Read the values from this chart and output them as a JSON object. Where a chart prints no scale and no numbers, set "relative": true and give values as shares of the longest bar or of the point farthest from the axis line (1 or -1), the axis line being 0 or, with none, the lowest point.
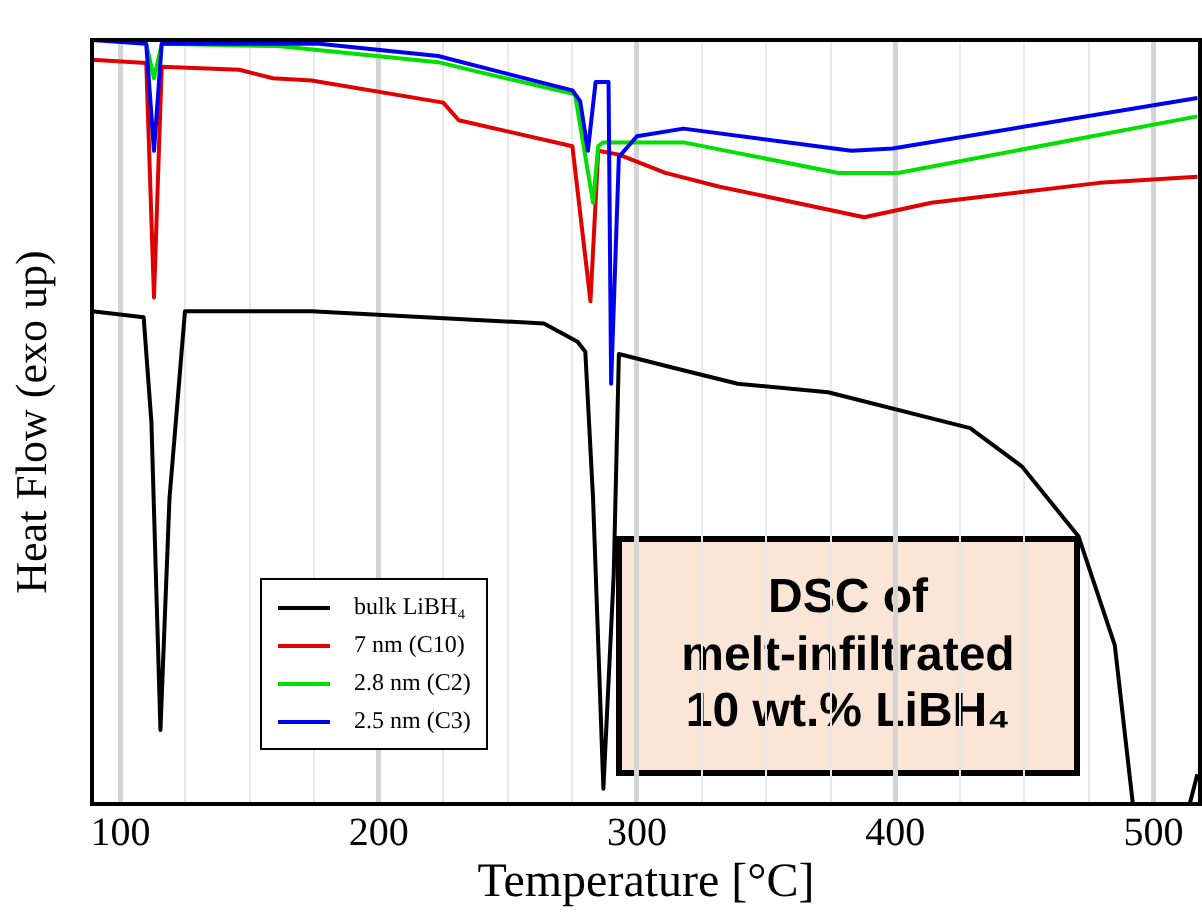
{
  "chart_data": {
    "type": "line",
    "xlabel": "Temperature [°C]",
    "ylabel": "Heat Flow (exo up)",
    "relative": true,
    "xlim": [
      89,
      518
    ],
    "xticks": [
      100,
      {
        "value": 125,
        "label": null
      },
      {
        "value": 150,
        "label": null
      },
      {
        "value": 175,
        "label": null
      },
      200,
      {
        "value": 225,
        "label": null
      },
      {
        "value": 250,
        "label": null
      },
      {
        "value": 275,
        "label": null
      },
      300,
      {
        "value": 325,
        "label": null
      },
      {
        "value": 350,
        "label": null
      },
      {
        "value": 375,
        "label": null
      },
      400,
      {
        "value": 425,
        "label": null
      },
      {
        "value": 450,
        "label": null
      },
      {
        "value": 475,
        "label": null
      },
      500
    ],
    "grid": "x",
    "legend": "bottom left",
    "marker": "none",
    "line_style": "solid",
    "annotations": [
      "DSC of melt-infiltrated 10 wt.% LiBH₄"
    ],
    "series": [
      {
        "name": "bulk LiBH₄",
        "color": "#000000",
        "x": [
          89,
          109,
          112,
          115.5,
          119,
          125,
          174,
          264,
          277,
          280,
          283,
          287,
          291,
          293,
          314,
          339,
          374,
          429,
          449,
          471,
          485,
          492,
          493,
          514,
          517
        ],
        "values": [
          0.645,
          0.637,
          0.5,
          0.097,
          0.4,
          0.645,
          0.645,
          0.629,
          0.605,
          0.592,
          0.4,
          0.02,
          0.3,
          0.589,
          0.571,
          0.55,
          0.539,
          0.492,
          0.442,
          0.35,
          0.208,
          0,
          null,
          0,
          0.039
        ]
      },
      {
        "name": "7 nm (C10)",
        "color": "#e00000",
        "x": [
          89,
          110,
          113,
          116,
          146,
          159,
          174,
          225,
          231,
          275,
          282,
          285,
          293,
          311,
          332,
          388,
          414,
          479,
          517
        ],
        "values": [
          0.974,
          0.97,
          0.663,
          0.965,
          0.961,
          0.95,
          0.947,
          0.918,
          0.895,
          0.861,
          0.658,
          0.855,
          0.85,
          0.826,
          0.808,
          0.768,
          0.787,
          0.813,
          0.821
        ]
      },
      {
        "name": "2.8 nm (C2)",
        "color": "#00e000",
        "x": [
          110,
          113,
          116,
          161,
          223,
          239,
          276,
          283,
          285,
          287,
          318,
          378,
          401,
          517
        ],
        "values": [
          0.995,
          0.95,
          0.995,
          0.992,
          0.971,
          0.958,
          0.929,
          0.787,
          0.861,
          0.866,
          0.866,
          0.826,
          0.826,
          0.9
        ]
      },
      {
        "name": "2.5 nm (C3)",
        "color": "#0000f0",
        "x": [
          89,
          110,
          113,
          116,
          177,
          223,
          275,
          278,
          281,
          284,
          289,
          290,
          293,
          300,
          318,
          383,
          399,
          517
        ],
        "values": [
          1,
          0.995,
          0.855,
          0.995,
          0.995,
          0.979,
          0.934,
          0.92,
          0.855,
          0.945,
          0.945,
          0.55,
          0.847,
          0.874,
          0.884,
          0.855,
          0.858,
          0.924
        ]
      }
    ]
  }
}
